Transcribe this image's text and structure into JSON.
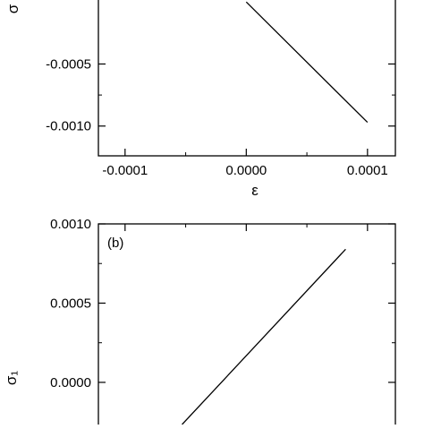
{
  "chart_data": [
    {
      "type": "line",
      "panel_label": "",
      "xlabel": "ε",
      "ylabel": "σ",
      "x_ticks": [
        -0.0001,
        0.0,
        0.0001
      ],
      "x_tick_labels": [
        "-0.0001",
        "0.0000",
        "0.0001"
      ],
      "y_ticks": [
        -0.0005,
        -0.001
      ],
      "y_tick_labels": [
        "-0.0005",
        "-0.0010"
      ],
      "xlim": [
        -0.000122,
        0.000123
      ],
      "ylim": [
        -0.00124,
        3e-05
      ],
      "grid": false,
      "series": [
        {
          "x": [
            0.0,
            0.0001
          ],
          "y": [
            0.0,
            -0.00097
          ]
        }
      ]
    },
    {
      "type": "line",
      "panel_label": "(b)",
      "xlabel": "",
      "ylabel": "σ₁",
      "x_ticks": [],
      "x_tick_labels": [],
      "y_ticks": [
        0.001,
        0.0005,
        0.0
      ],
      "y_tick_labels": [
        "0.0010",
        "0.0005",
        "0.0000"
      ],
      "xlim": [
        -0.000122,
        0.000123
      ],
      "ylim": [
        -0.0003,
        0.001
      ],
      "grid": false,
      "series": [
        {
          "x": [
            -5.3e-05,
            8.2e-05
          ],
          "y": [
            -0.0003,
            0.00084
          ]
        }
      ]
    }
  ]
}
